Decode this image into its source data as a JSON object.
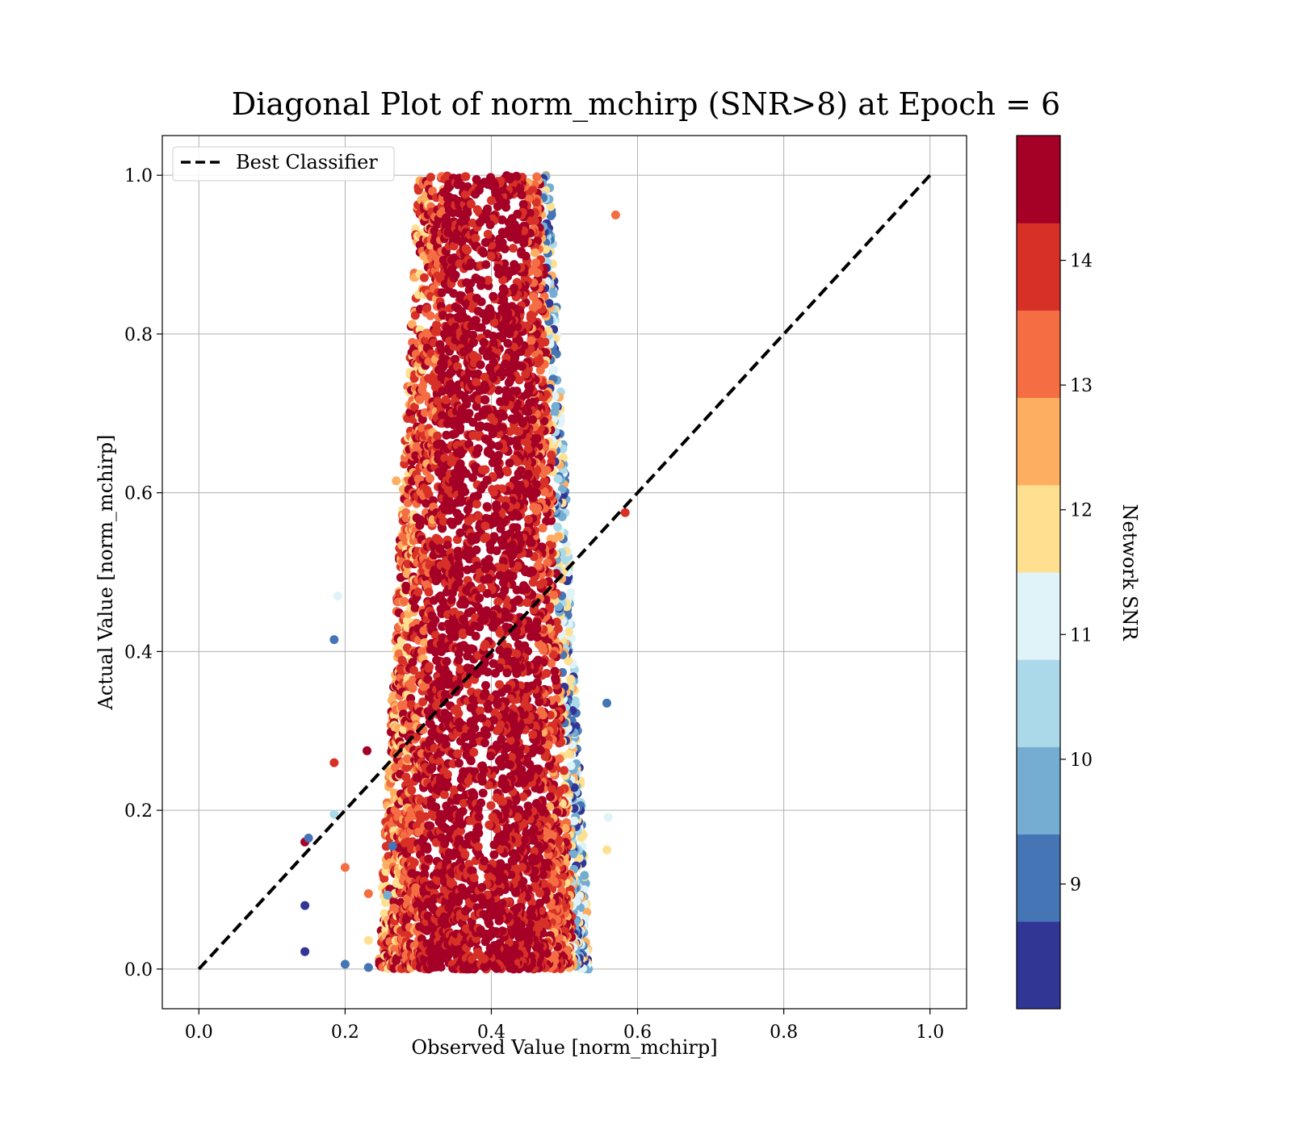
{
  "chart_data": {
    "type": "scatter",
    "title": "Diagonal Plot of norm_mchirp (SNR>8) at Epoch = 6",
    "xlabel": "Observed Value [norm_mchirp]",
    "ylabel": "Actual Value [norm_mchirp]",
    "xlim": [
      -0.05,
      1.05
    ],
    "ylim": [
      -0.05,
      1.05
    ],
    "x_ticks": [
      "0.0",
      "0.2",
      "0.4",
      "0.6",
      "0.8",
      "1.0"
    ],
    "y_ticks": [
      "0.0",
      "0.2",
      "0.4",
      "0.6",
      "0.8",
      "1.0"
    ],
    "grid": true,
    "legend": {
      "location": "upper left",
      "entries": [
        {
          "label": "Best Classifier",
          "style": "dashed",
          "color": "#000000"
        }
      ]
    },
    "reference_line": {
      "label": "Best Classifier",
      "x": [
        0.0,
        1.0
      ],
      "y": [
        0.0,
        1.0
      ]
    },
    "colorbar": {
      "label": "Network SNR",
      "range": [
        8,
        15
      ],
      "ticks": [
        "9",
        "10",
        "11",
        "12",
        "13",
        "14"
      ],
      "levels": [
        {
          "from": 8.0,
          "to": 8.7,
          "color": "#313695"
        },
        {
          "from": 8.7,
          "to": 9.4,
          "color": "#4575b4"
        },
        {
          "from": 9.4,
          "to": 10.1,
          "color": "#74add1"
        },
        {
          "from": 10.1,
          "to": 10.8,
          "color": "#abd9e9"
        },
        {
          "from": 10.8,
          "to": 11.5,
          "color": "#e0f3f8"
        },
        {
          "from": 11.5,
          "to": 12.2,
          "color": "#fee090"
        },
        {
          "from": 12.2,
          "to": 12.9,
          "color": "#fdae61"
        },
        {
          "from": 12.9,
          "to": 13.6,
          "color": "#f46d43"
        },
        {
          "from": 13.6,
          "to": 14.3,
          "color": "#d73027"
        },
        {
          "from": 14.3,
          "to": 15.0,
          "color": "#a50026"
        }
      ]
    },
    "scatter_summary": {
      "x_center": 0.4,
      "x_spread_bottom": 0.145,
      "x_spread_top": 0.09,
      "y_range": [
        0.0,
        1.0
      ]
    },
    "outliers": [
      {
        "x": 0.19,
        "y": 0.47,
        "snr": 11.2
      },
      {
        "x": 0.185,
        "y": 0.415,
        "snr": 9.0
      },
      {
        "x": 0.185,
        "y": 0.26,
        "snr": 14.0
      },
      {
        "x": 0.23,
        "y": 0.275,
        "snr": 14.6
      },
      {
        "x": 0.185,
        "y": 0.195,
        "snr": 10.5
      },
      {
        "x": 0.145,
        "y": 0.16,
        "snr": 14.6
      },
      {
        "x": 0.15,
        "y": 0.165,
        "snr": 8.9
      },
      {
        "x": 0.2,
        "y": 0.128,
        "snr": 13.2
      },
      {
        "x": 0.145,
        "y": 0.08,
        "snr": 8.2
      },
      {
        "x": 0.145,
        "y": 0.022,
        "snr": 8.2
      },
      {
        "x": 0.2,
        "y": 0.006,
        "snr": 9.0
      },
      {
        "x": 0.232,
        "y": 0.002,
        "snr": 9.0
      },
      {
        "x": 0.232,
        "y": 0.095,
        "snr": 13.0
      },
      {
        "x": 0.232,
        "y": 0.036,
        "snr": 12.0
      },
      {
        "x": 0.258,
        "y": 0.093,
        "snr": 9.7
      },
      {
        "x": 0.265,
        "y": 0.155,
        "snr": 9.0
      },
      {
        "x": 0.27,
        "y": 0.615,
        "snr": 12.2
      },
      {
        "x": 0.57,
        "y": 0.95,
        "snr": 13.2
      },
      {
        "x": 0.583,
        "y": 0.575,
        "snr": 14.0
      },
      {
        "x": 0.558,
        "y": 0.335,
        "snr": 9.0
      },
      {
        "x": 0.558,
        "y": 0.15,
        "snr": 12.0
      },
      {
        "x": 0.56,
        "y": 0.191,
        "snr": 11.2
      }
    ]
  }
}
